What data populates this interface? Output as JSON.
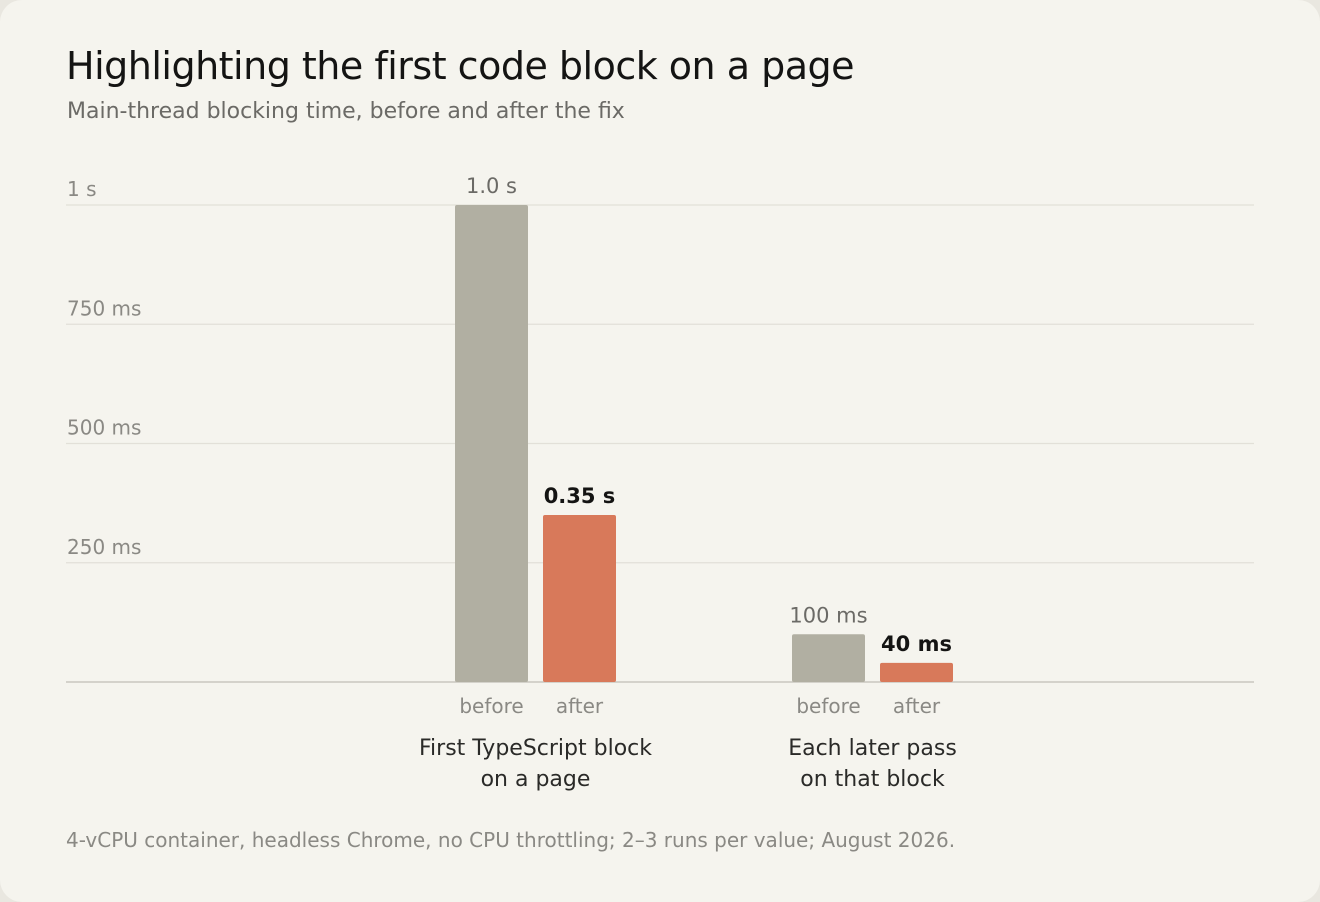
{
  "header": {
    "title": "Highlighting the first code block on a page",
    "subtitle": "Main-thread blocking time, before and after the fix"
  },
  "footnote": "4-vCPU container, headless Chrome, no CPU throttling; 2–3 runs per value; August 2026.",
  "colors": {
    "before": "#b1afa2",
    "after": "#d8795a",
    "grid": "#e2e0d8",
    "axis": "#c9c7bf",
    "tick_text": "#8a8984",
    "label_text": "#2a2a28"
  },
  "chart_data": {
    "type": "bar",
    "unit": "ms",
    "ylim": [
      0,
      1000
    ],
    "yticks": [
      {
        "value": 250,
        "label": "250 ms"
      },
      {
        "value": 500,
        "label": "500 ms"
      },
      {
        "value": 750,
        "label": "750 ms"
      },
      {
        "value": 1000,
        "label": "1 s"
      }
    ],
    "grid": true,
    "series_labels": [
      "before",
      "after"
    ],
    "groups": [
      {
        "label_lines": [
          "First TypeScript block",
          "on a page"
        ],
        "bars": [
          {
            "series": "before",
            "value": 1000,
            "value_label": "1.0 s"
          },
          {
            "series": "after",
            "value": 350,
            "value_label": "0.35 s"
          }
        ]
      },
      {
        "label_lines": [
          "Each later pass",
          "on that block"
        ],
        "bars": [
          {
            "series": "before",
            "value": 100,
            "value_label": "100 ms"
          },
          {
            "series": "after",
            "value": 40,
            "value_label": "40 ms"
          }
        ]
      }
    ]
  }
}
